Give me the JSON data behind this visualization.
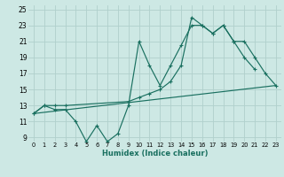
{
  "xlabel": "Humidex (Indice chaleur)",
  "xlim": [
    -0.5,
    23.5
  ],
  "ylim": [
    8.5,
    25.5
  ],
  "yticks": [
    9,
    11,
    13,
    15,
    17,
    19,
    21,
    23,
    25
  ],
  "xticks": [
    0,
    1,
    2,
    3,
    4,
    5,
    6,
    7,
    8,
    9,
    10,
    11,
    12,
    13,
    14,
    15,
    16,
    17,
    18,
    19,
    20,
    21,
    22,
    23
  ],
  "bg_color": "#cde8e4",
  "grid_color": "#b0d0cc",
  "line_color": "#1a7060",
  "jagged_x": [
    0,
    1,
    2,
    3,
    4,
    5,
    6,
    7,
    8,
    9,
    10,
    11,
    12,
    13,
    14,
    15,
    16,
    17,
    18,
    19,
    20,
    21
  ],
  "jagged_y": [
    12,
    13,
    12.5,
    12.5,
    11,
    8.5,
    10.5,
    8.5,
    9.5,
    13,
    21,
    18,
    15.5,
    18,
    20.5,
    23,
    23,
    22,
    23,
    21,
    19,
    17.5
  ],
  "envelope_x": [
    0,
    1,
    2,
    3,
    9,
    10,
    11,
    12,
    13,
    14,
    15,
    16,
    17,
    18,
    19,
    20,
    21,
    22,
    23
  ],
  "envelope_y": [
    12,
    13,
    13,
    13,
    13.5,
    14,
    14.5,
    15,
    16,
    18,
    24,
    23,
    22,
    23,
    21,
    21,
    19,
    17,
    15.5
  ],
  "trend_x": [
    0,
    23
  ],
  "trend_y": [
    12,
    15.5
  ]
}
